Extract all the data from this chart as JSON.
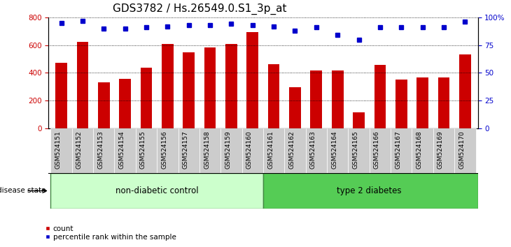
{
  "title": "GDS3782 / Hs.26549.0.S1_3p_at",
  "samples": [
    "GSM524151",
    "GSM524152",
    "GSM524153",
    "GSM524154",
    "GSM524155",
    "GSM524156",
    "GSM524157",
    "GSM524158",
    "GSM524159",
    "GSM524160",
    "GSM524161",
    "GSM524162",
    "GSM524163",
    "GSM524164",
    "GSM524165",
    "GSM524166",
    "GSM524167",
    "GSM524168",
    "GSM524169",
    "GSM524170"
  ],
  "counts": [
    470,
    625,
    330,
    355,
    435,
    610,
    550,
    585,
    610,
    695,
    460,
    295,
    415,
    415,
    115,
    455,
    350,
    365,
    365,
    535
  ],
  "percentiles": [
    95,
    97,
    90,
    90,
    91,
    92,
    93,
    93,
    94,
    93,
    92,
    88,
    91,
    84,
    80,
    91,
    91,
    91,
    91,
    96
  ],
  "bar_color": "#cc0000",
  "dot_color": "#0000cc",
  "ylim_left": [
    0,
    800
  ],
  "ylim_right": [
    0,
    100
  ],
  "yticks_left": [
    0,
    200,
    400,
    600,
    800
  ],
  "yticks_right": [
    0,
    25,
    50,
    75,
    100
  ],
  "group1_label": "non-diabetic control",
  "group2_label": "type 2 diabetes",
  "group1_n": 10,
  "group1_color": "#ccffcc",
  "group2_color": "#55cc55",
  "disease_state_label": "disease state",
  "legend_count_label": "count",
  "legend_percentile_label": "percentile rank within the sample",
  "bar_width": 0.55,
  "title_fontsize": 11,
  "tick_fontsize": 7.5,
  "xtick_bg_color": "#cccccc",
  "xtick_fontsize": 6.5
}
